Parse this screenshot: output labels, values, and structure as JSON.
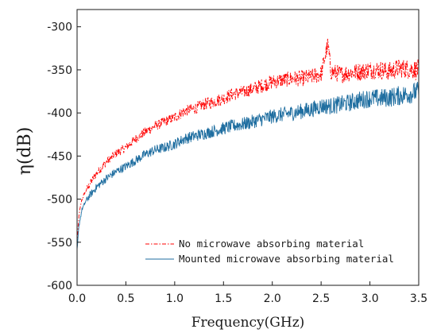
{
  "chart_data": {
    "type": "line",
    "xlabel": "Frequency(GHz)",
    "ylabel": "η(dB)",
    "xlim": [
      0,
      3.5
    ],
    "ylim": [
      -600,
      -280
    ],
    "x_ticks": [
      0,
      0.5,
      1,
      1.5,
      2,
      2.5,
      3,
      3.5
    ],
    "x_tick_labels": [
      "0.0",
      "0.5",
      "1.0",
      "1.5",
      "2.0",
      "2.5",
      "3.0",
      "3.5"
    ],
    "y_ticks": [
      -600,
      -550,
      -500,
      -450,
      -400,
      -350,
      -300
    ],
    "y_tick_labels": [
      "-600",
      "-550",
      "-500",
      "-450",
      "-400",
      "-350",
      "-300"
    ],
    "grid": false,
    "legend_position": "bottom-right",
    "series": [
      {
        "name": "No microwave absorbing material",
        "color": "#ff0000",
        "style": "dash-dot",
        "x": [
          0.0,
          0.02,
          0.05,
          0.1,
          0.2,
          0.3,
          0.4,
          0.5,
          0.6,
          0.7,
          0.8,
          0.9,
          1.0,
          1.1,
          1.2,
          1.3,
          1.4,
          1.5,
          1.6,
          1.7,
          1.8,
          1.9,
          2.0,
          2.1,
          2.2,
          2.3,
          2.4,
          2.5,
          2.57,
          2.6,
          2.7,
          2.8,
          2.9,
          3.0,
          3.1,
          3.2,
          3.3,
          3.4,
          3.5
        ],
        "y": [
          -552,
          -518,
          -500,
          -488,
          -470,
          -457,
          -447,
          -440,
          -430,
          -422,
          -415,
          -410,
          -405,
          -398,
          -395,
          -390,
          -387,
          -383,
          -378,
          -376,
          -372,
          -368,
          -364,
          -362,
          -360,
          -360,
          -358,
          -355,
          -320,
          -352,
          -355,
          -353,
          -352,
          -350,
          -350,
          -352,
          -348,
          -349,
          -350
        ]
      },
      {
        "name": "Mounted microwave absorbing material",
        "color": "#1f6ea0",
        "style": "solid",
        "x": [
          0.0,
          0.02,
          0.05,
          0.1,
          0.2,
          0.3,
          0.4,
          0.5,
          0.6,
          0.7,
          0.8,
          0.9,
          1.0,
          1.1,
          1.2,
          1.3,
          1.4,
          1.5,
          1.6,
          1.7,
          1.8,
          1.9,
          2.0,
          2.1,
          2.2,
          2.3,
          2.4,
          2.5,
          2.6,
          2.7,
          2.8,
          2.9,
          3.0,
          3.1,
          3.2,
          3.3,
          3.4,
          3.5
        ],
        "y": [
          -560,
          -530,
          -512,
          -500,
          -486,
          -476,
          -468,
          -462,
          -455,
          -448,
          -443,
          -440,
          -436,
          -430,
          -427,
          -424,
          -421,
          -418,
          -415,
          -413,
          -410,
          -407,
          -404,
          -402,
          -400,
          -398,
          -396,
          -392,
          -392,
          -390,
          -388,
          -385,
          -383,
          -383,
          -382,
          -380,
          -378,
          -375
        ]
      }
    ]
  }
}
